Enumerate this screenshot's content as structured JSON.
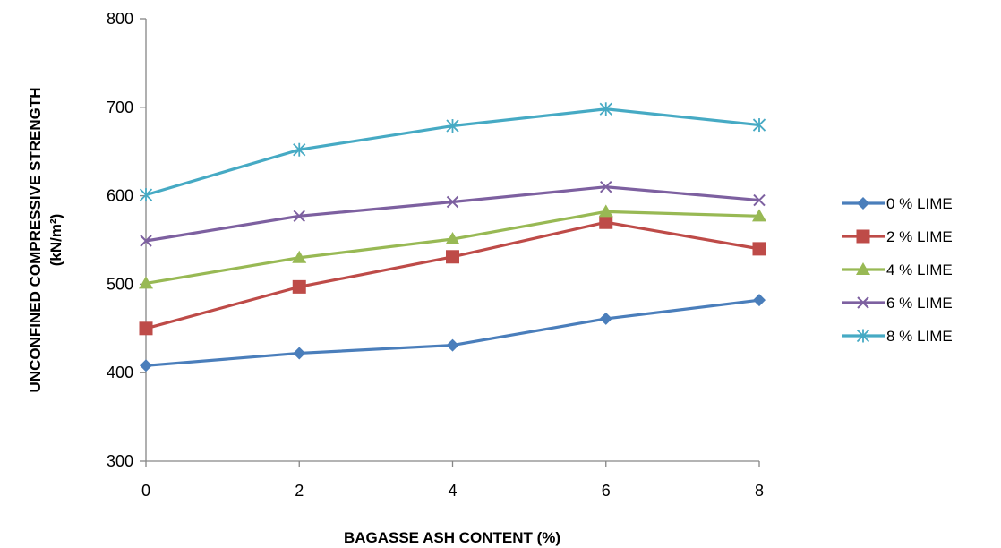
{
  "chart_data": {
    "type": "line",
    "title": "",
    "xlabel": "BAGASSE ASH CONTENT (%)",
    "ylabel_line1": "UNCONFINED COMPRESSIVE STRENGTH",
    "ylabel_line2": "(kN/m²)",
    "x": [
      0,
      2,
      4,
      6,
      8
    ],
    "xlim": [
      0,
      8
    ],
    "ylim": [
      300,
      800
    ],
    "yticks": [
      300,
      400,
      500,
      600,
      700,
      800
    ],
    "xticks": [
      0,
      2,
      4,
      6,
      8
    ],
    "grid": false,
    "legend_position": "right",
    "series": [
      {
        "name": "0 % LIME",
        "marker": "diamond",
        "color": "#4a7ebb",
        "values": [
          408,
          422,
          431,
          461,
          482
        ]
      },
      {
        "name": "2 % LIME",
        "marker": "square",
        "color": "#be4b48",
        "values": [
          450,
          497,
          531,
          570,
          540
        ]
      },
      {
        "name": "4 % LIME",
        "marker": "triangle",
        "color": "#98b954",
        "values": [
          501,
          530,
          551,
          582,
          577
        ]
      },
      {
        "name": "6 % LIME",
        "marker": "x",
        "color": "#7d60a0",
        "values": [
          549,
          577,
          593,
          610,
          595
        ]
      },
      {
        "name": "8 % LIME",
        "marker": "star",
        "color": "#46aac4",
        "values": [
          601,
          652,
          679,
          698,
          680
        ]
      }
    ]
  }
}
